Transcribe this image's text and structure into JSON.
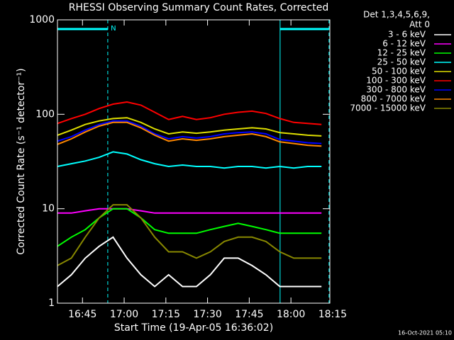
{
  "chart_data": {
    "type": "line",
    "title": "RHESSI Observing Summary Count Rates, Corrected",
    "x_label": "Start Time (19-Apr-05 16:36:02)",
    "y_label": "Corrected Count Rate (s⁻¹ detector⁻¹)",
    "legend_title": [
      "Det 1,3,4,5,6,9,",
      "Att 0"
    ],
    "timestamp": "16-Oct-2021 05:10",
    "log_y": true,
    "xlim": [
      0,
      98
    ],
    "ylim": [
      1,
      1000
    ],
    "yticks": [
      1,
      10,
      100,
      1000
    ],
    "xticks": [
      {
        "value": 9,
        "label": "16:45"
      },
      {
        "value": 24,
        "label": "17:00"
      },
      {
        "value": 39,
        "label": "17:15"
      },
      {
        "value": 54,
        "label": "17:30"
      },
      {
        "value": 69,
        "label": "17:45"
      },
      {
        "value": 84,
        "label": "18:00"
      },
      {
        "value": 99,
        "label": "18:15"
      }
    ],
    "intervals": [
      {
        "x": [
          0,
          18.1
        ],
        "label": "N"
      },
      {
        "x": [
          80.1,
          97.7
        ]
      }
    ],
    "x": [
      0,
      5,
      10,
      15,
      20,
      25,
      30,
      35,
      40,
      45,
      50,
      55,
      60,
      65,
      70,
      75,
      80,
      85,
      90,
      95
    ],
    "series": [
      {
        "name": "3 - 6 keV",
        "color": "#000000",
        "values": [
          1.5,
          2,
          3,
          4,
          5,
          3,
          2,
          1.5,
          2,
          1.5,
          1.5,
          2,
          3,
          3,
          2.5,
          2,
          1.5,
          1.5,
          1.5,
          1.5
        ]
      },
      {
        "name": "6 - 12 keV",
        "color": "#ff00ff",
        "values": [
          9,
          9,
          9.5,
          10,
          10,
          10,
          9.5,
          9,
          9,
          9,
          9,
          9,
          9,
          9,
          9,
          9,
          9,
          9,
          9,
          9
        ]
      },
      {
        "name": "12 - 25 keV",
        "color": "#00ff00",
        "values": [
          4,
          5,
          6,
          8,
          10,
          10,
          8,
          6,
          5.5,
          5.5,
          5.5,
          6,
          6.5,
          7,
          6.5,
          6,
          5.5,
          5.5,
          5.5,
          5.5
        ]
      },
      {
        "name": "25 - 50 keV",
        "color": "#00ffff",
        "values": [
          28,
          30,
          32,
          35,
          40,
          38,
          33,
          30,
          28,
          29,
          28,
          28,
          27,
          28,
          28,
          27,
          28,
          27,
          28,
          28
        ]
      },
      {
        "name": "50 - 100 keV",
        "color": "#dddd00",
        "values": [
          60,
          68,
          78,
          85,
          90,
          92,
          82,
          70,
          62,
          65,
          63,
          65,
          68,
          70,
          72,
          70,
          64,
          62,
          60,
          59
        ]
      },
      {
        "name": "100 - 300 keV",
        "color": "#ff0000",
        "values": [
          80,
          90,
          100,
          115,
          128,
          135,
          125,
          105,
          88,
          95,
          88,
          92,
          100,
          105,
          108,
          102,
          90,
          82,
          80,
          78
        ]
      },
      {
        "name": "300 - 800 keV",
        "color": "#0000ff",
        "values": [
          52,
          58,
          68,
          78,
          85,
          85,
          75,
          62,
          55,
          58,
          56,
          58,
          62,
          64,
          65,
          62,
          54,
          52,
          50,
          49
        ]
      },
      {
        "name": "800 - 7000 keV",
        "color": "#ff8800",
        "values": [
          48,
          55,
          65,
          75,
          82,
          82,
          72,
          60,
          52,
          55,
          53,
          55,
          58,
          60,
          62,
          58,
          51,
          49,
          47,
          46
        ]
      },
      {
        "name": "7000 - 15000 keV",
        "color": "#888800",
        "values": [
          2.5,
          3,
          5,
          8,
          11,
          11,
          8,
          5,
          3.5,
          3.5,
          3,
          3.5,
          4.5,
          5,
          5,
          4.5,
          3.5,
          3,
          3,
          3
        ]
      }
    ]
  }
}
